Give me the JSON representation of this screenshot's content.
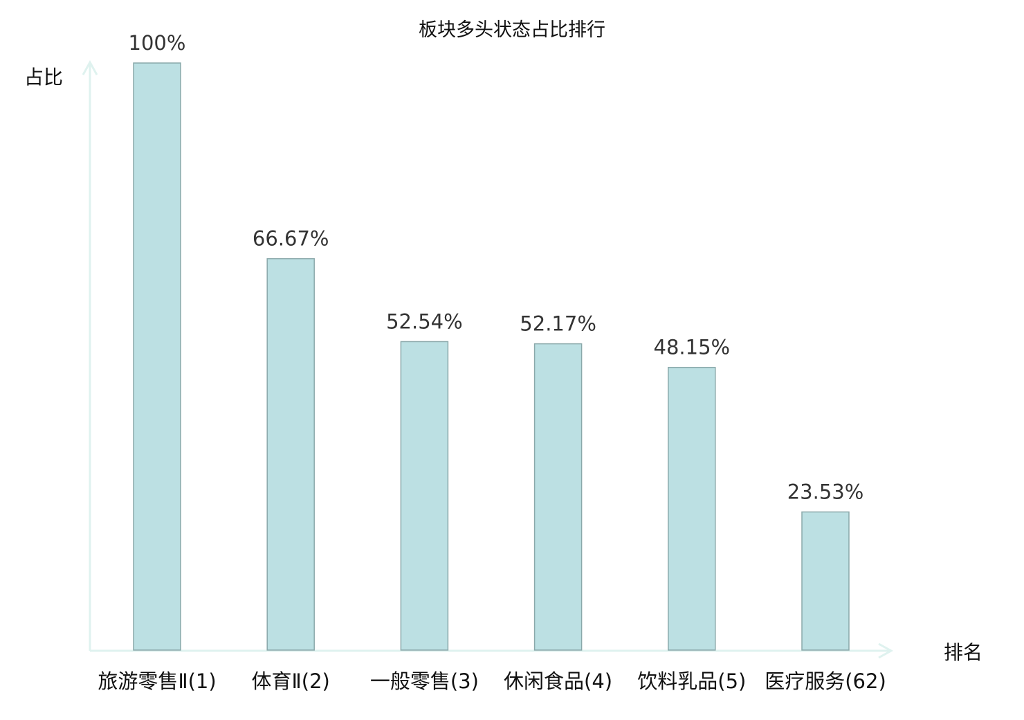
{
  "chart_data": {
    "type": "bar",
    "title": "板块多头状态占比排行",
    "xlabel": "排名",
    "ylabel": "占比",
    "ylim": [
      0,
      100
    ],
    "grid": false,
    "categories": [
      "旅游零售Ⅱ(1)",
      "体育Ⅱ(2)",
      "一般零售(3)",
      "休闲食品(4)",
      "饮料乳品(5)",
      "医疗服务(62)"
    ],
    "values": [
      100,
      66.67,
      52.54,
      52.17,
      48.15,
      23.53
    ],
    "data_labels": [
      "100%",
      "66.67%",
      "52.54%",
      "52.17%",
      "48.15%",
      "23.53%"
    ],
    "highlight_index": 5,
    "colors": {
      "bar_fill": "#bce0e3",
      "bar_edge": "#8aa8aa",
      "axis": "#dff2ef",
      "highlight_text": "#e8141a",
      "text": "#111111"
    }
  }
}
